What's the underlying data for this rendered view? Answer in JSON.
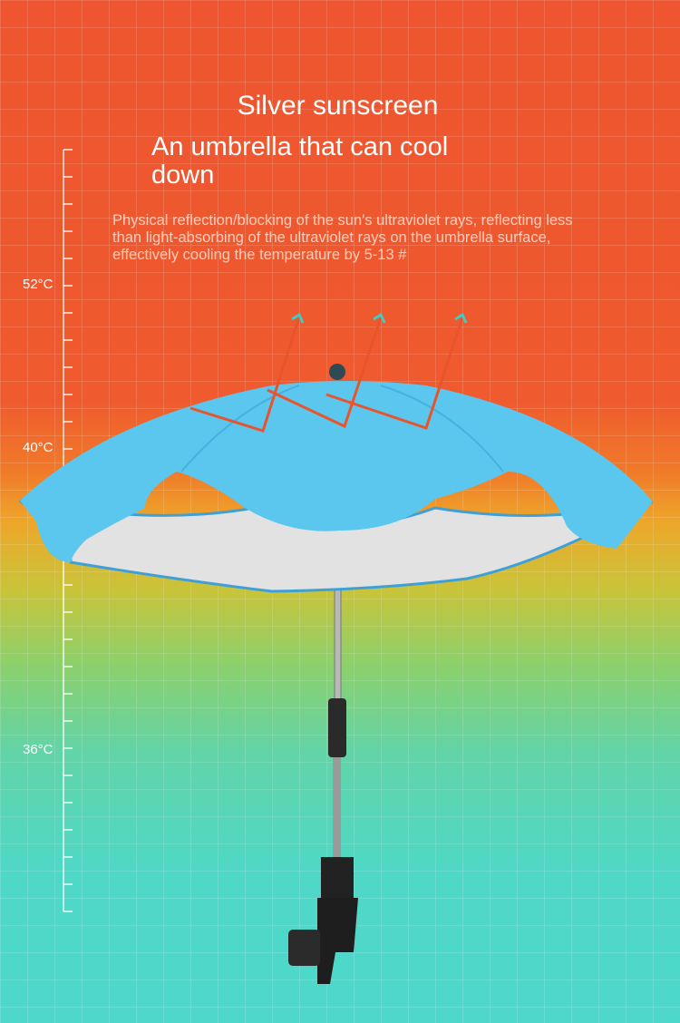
{
  "heading": {
    "title": "Silver sunscreen",
    "subtitle": "An umbrella that can cool down",
    "description": "Physical reflection/blocking of the sun's ultraviolet rays, reflecting less than light-absorbing of the ultraviolet rays on the umbrella surface, effectively cooling the temperature by 5-13 #"
  },
  "thermometer_scale": {
    "labels": [
      "52°C",
      "40°C",
      "36°C"
    ]
  },
  "colors": {
    "canopy": "#5bc6ee",
    "underside": "#e4e4e4",
    "top_background": "#ee5530",
    "bottom_background": "#4ed8cc"
  }
}
